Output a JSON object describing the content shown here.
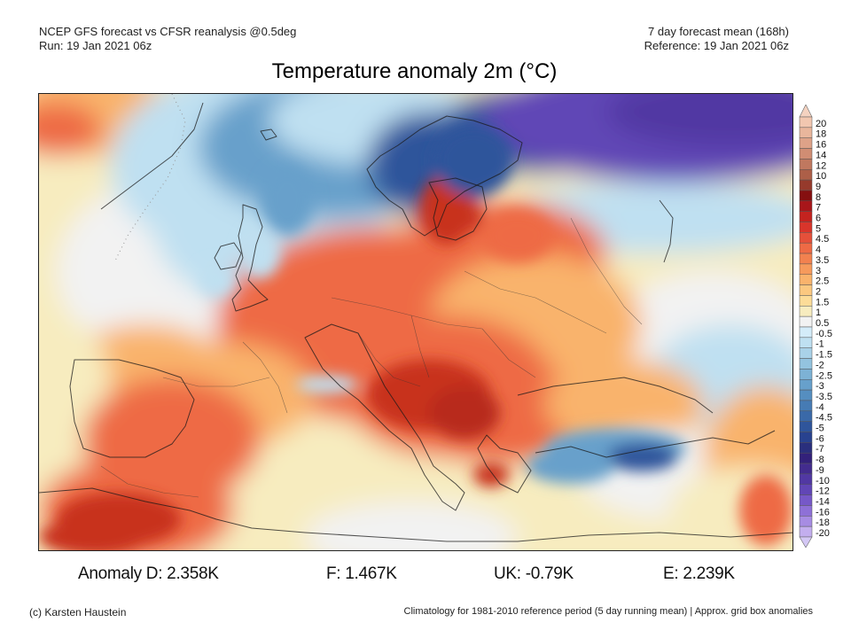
{
  "header": {
    "left_line1": "NCEP GFS forecast vs CFSR reanalysis @0.5deg",
    "left_line2": "Run: 19 Jan 2021 06z",
    "right_line1": "7 day forecast mean (168h)",
    "right_line2": "Reference: 19 Jan 2021 06z"
  },
  "title": "Temperature anomaly 2m (°C)",
  "colorbar": {
    "labels": [
      "20",
      "18",
      "16",
      "14",
      "12",
      "10",
      "9",
      "8",
      "7",
      "6",
      "5",
      "4.5",
      "4",
      "3.5",
      "3",
      "2.5",
      "2",
      "1.5",
      "1",
      "0.5",
      "-0.5",
      "-1",
      "-1.5",
      "-2",
      "-2.5",
      "-3",
      "-3.5",
      "-4",
      "-4.5",
      "-5",
      "-6",
      "-7",
      "-8",
      "-9",
      "-10",
      "-12",
      "-14",
      "-16",
      "-18",
      "-20"
    ],
    "colors": [
      "#f2c7b0",
      "#e9b69c",
      "#dea288",
      "#d08d73",
      "#c0785f",
      "#ad5f48",
      "#963a2c",
      "#850f10",
      "#a8161a",
      "#c4231f",
      "#d9352b",
      "#e5503a",
      "#ee6a45",
      "#f2814f",
      "#f69a5c",
      "#f9b36c",
      "#fbc880",
      "#fcdc98",
      "#f7ecbf",
      "#f2f2f2",
      "#d4ecf9",
      "#bfe0f1",
      "#a9d2e8",
      "#93c3df",
      "#7db2d5",
      "#67a0cb",
      "#558ec0",
      "#467bb4",
      "#3a69a8",
      "#2f559b",
      "#28428f",
      "#2a2f7d",
      "#33217a",
      "#432c8e",
      "#5138a3",
      "#6146b6",
      "#7658c8",
      "#8e70d7",
      "#a78ce3",
      "#c3aeee"
    ],
    "top_arrow_color": "#f4d2c0",
    "bottom_arrow_color": "#d3c7f4"
  },
  "stats": [
    {
      "text": "Anomaly D: 2.358K"
    },
    {
      "text": "F: 1.467K"
    },
    {
      "text": "UK: -0.79K"
    },
    {
      "text": "E: 2.239K"
    }
  ],
  "footer": {
    "left": "(c) Karsten Haustein",
    "right": "Climatology for 1981-2010 reference period (5 day running mean) | Approx. grid box anomalies"
  },
  "map_colors": {
    "warm_strong": "#c8321f",
    "warm": "#ee6a45",
    "warm_light": "#f9b36c",
    "warm_pale": "#f7ecbf",
    "neutral": "#f2f2f2",
    "cold_pale": "#bfe0f1",
    "cold": "#67a0cb",
    "cold_strong": "#2f559b",
    "very_cold": "#6146b6",
    "border": "#1a1a1a"
  }
}
